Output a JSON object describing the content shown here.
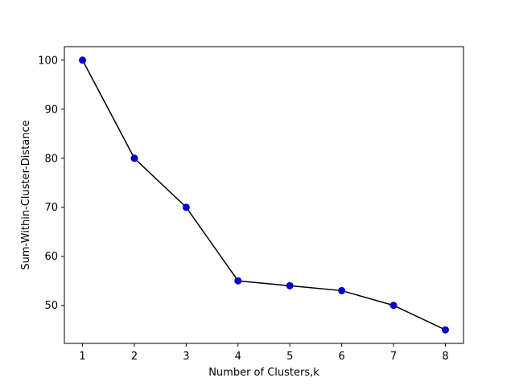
{
  "chart_data": {
    "type": "line",
    "title": "",
    "xlabel": "Number of Clusters,k",
    "ylabel": "Sum-Within-Cluster-Distance",
    "x": [
      1,
      2,
      3,
      4,
      5,
      6,
      7,
      8
    ],
    "series": [
      {
        "values": [
          100,
          80,
          70,
          55,
          54,
          53,
          50,
          45
        ],
        "line_color": "#000000",
        "marker_color": "#0000cc",
        "marker": "circle"
      }
    ],
    "xlim": [
      0.65,
      8.35
    ],
    "ylim": [
      42.25,
      102.75
    ],
    "xticks": [
      1,
      2,
      3,
      4,
      5,
      6,
      7,
      8
    ],
    "yticks": [
      50,
      60,
      70,
      80,
      90,
      100
    ],
    "grid": false,
    "legend": "none"
  }
}
